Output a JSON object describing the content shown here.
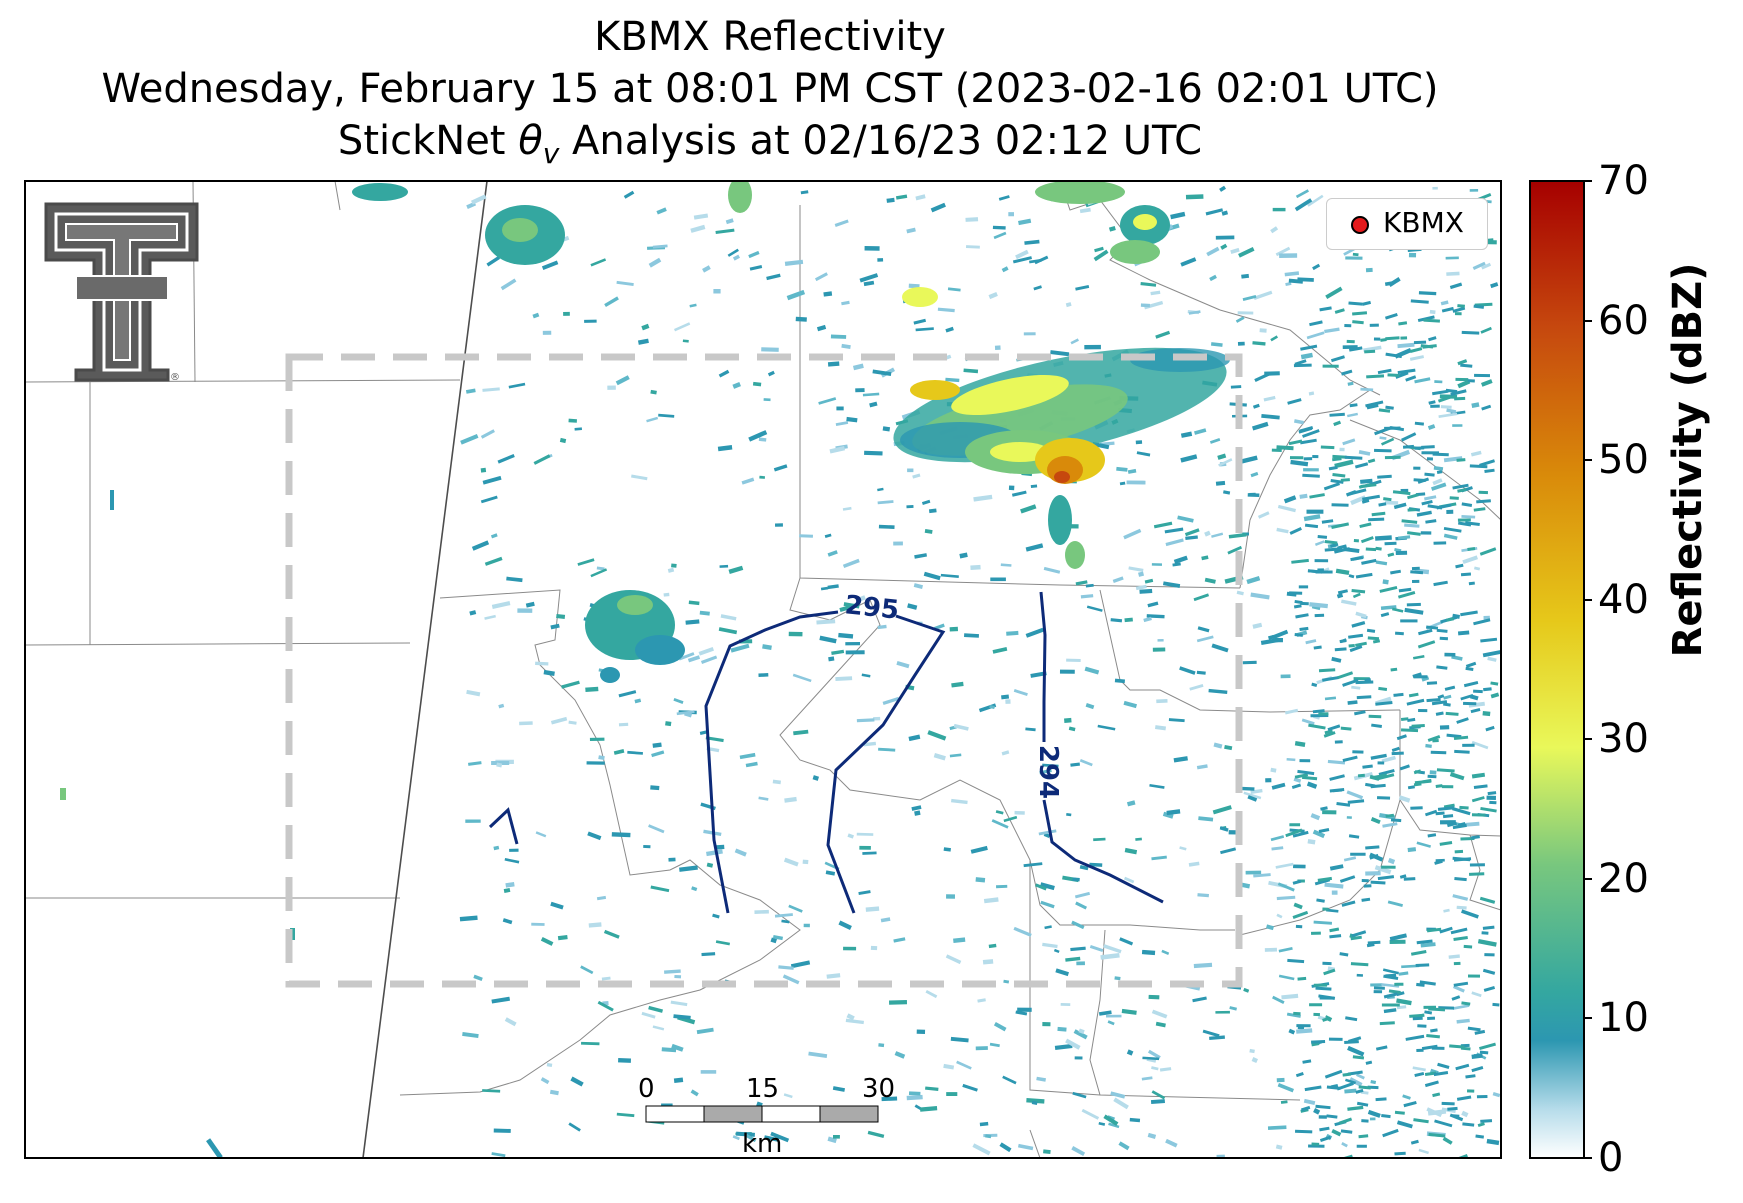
{
  "title": {
    "line1": "KBMX Reflectivity",
    "line2": "Wednesday, February 15 at 08:01 PM CST (2023-02-16 02:01 UTC)",
    "line3_prefix": "StickNet ",
    "line3_symbol": "θ",
    "line3_subscript": "v",
    "line3_suffix": " Analysis at 02/16/23 02:12 UTC"
  },
  "legend": {
    "label": "KBMX",
    "marker_color": "#e41a1c"
  },
  "colorbar": {
    "label": "Reflectivity (dBZ)",
    "ticks": [
      "0",
      "10",
      "20",
      "30",
      "40",
      "50",
      "60",
      "70"
    ],
    "min": 0,
    "max": 70,
    "colors": [
      "#ffffff",
      "#b6dcea",
      "#2c97b1",
      "#34a7a0",
      "#78c77e",
      "#e9f85a",
      "#e6c81a",
      "#d98a0a",
      "#c6480e",
      "#a60000"
    ]
  },
  "contours": [
    {
      "label": "295",
      "value": 295
    },
    {
      "label": "294",
      "value": 294
    }
  ],
  "scale_bar": {
    "ticks": [
      "0",
      "15",
      "30"
    ],
    "unit": "km"
  },
  "logo": {
    "name": "Texas Tech double-T",
    "mark": "®"
  },
  "colors": {
    "contour": "#0d2a78",
    "analysis_box": "#c8c8c8",
    "borders": "#8a8a8a"
  }
}
